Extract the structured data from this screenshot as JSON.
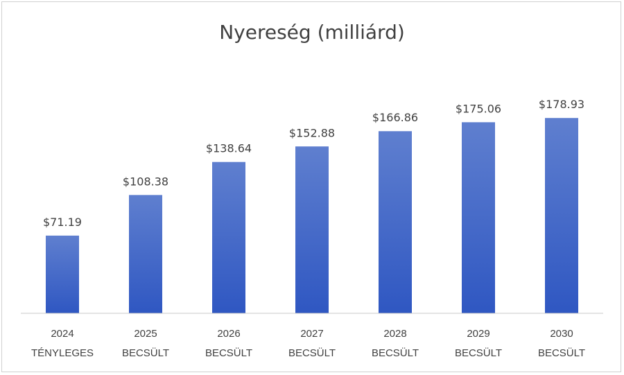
{
  "chart_data": {
    "type": "bar",
    "title": "Nyereség (milliárd)",
    "xlabel": "",
    "ylabel": "",
    "categories": [
      [
        "2024",
        "TÉNYLEGES"
      ],
      [
        "2025",
        "BECSÜLT"
      ],
      [
        "2026",
        "BECSÜLT"
      ],
      [
        "2027",
        "BECSÜLT"
      ],
      [
        "2028",
        "BECSÜLT"
      ],
      [
        "2029",
        "BECSÜLT"
      ],
      [
        "2030",
        "BECSÜLT"
      ]
    ],
    "values": [
      71.19,
      108.38,
      138.64,
      152.88,
      166.86,
      175.06,
      178.93
    ],
    "data_labels": [
      "$71.19",
      "$108.38",
      "$138.64",
      "$152.88",
      "$166.86",
      "$175.06",
      "$178.93"
    ],
    "ylim": [
      0,
      200
    ],
    "grid": false,
    "legend": "none",
    "bar_color_top": "#5f7fcf",
    "bar_color_bottom": "#2f57c2"
  }
}
